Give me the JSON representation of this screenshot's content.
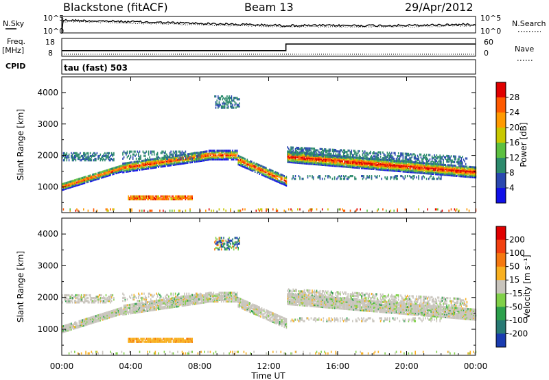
{
  "header": {
    "station": "Blackstone (fitACF)",
    "beam": "Beam 13",
    "date": "29/Apr/2012",
    "left_labels": {
      "nsky": "N.Sky",
      "freq": "Freq.",
      "mhz": "[MHz]",
      "cpid": "CPID"
    },
    "right_labels": {
      "nsearch": "N.Search",
      "nave": "Nave"
    },
    "cpid_value": "tau (fast) 503"
  },
  "chart_data": [
    {
      "type": "line",
      "name": "noise",
      "left_ticks": [
        "10^5",
        "10^0"
      ],
      "right_ticks": [
        "10^5",
        "10^0"
      ],
      "x_range_hours": [
        0,
        24
      ],
      "nsky_level_fraction_start": 0.78,
      "nsky_level_fraction_end": 0.45
    },
    {
      "type": "line",
      "name": "frequency-nave",
      "left_ticks": [
        "18",
        "8"
      ],
      "right_ticks": [
        "60",
        "0"
      ],
      "freq_mhz_segments": [
        {
          "from": "00:00",
          "to": "13:00",
          "value": 11
        },
        {
          "from": "13:00",
          "to": "24:00",
          "value": 15
        }
      ],
      "freq_ylim": [
        8,
        18
      ]
    },
    {
      "type": "heatmap",
      "name": "power",
      "ylabel": "Slant Range [km]",
      "yticks": [
        1000,
        2000,
        3000,
        4000
      ],
      "ylim": [
        180,
        4500
      ],
      "colorbar": {
        "label": "Power [dB]",
        "ticks": [
          "28",
          "24",
          "20",
          "16",
          "12",
          "8",
          "4"
        ],
        "colors": [
          "#1010e8",
          "#2a48b0",
          "#2c8a6c",
          "#5cc040",
          "#c8c800",
          "#ff9a00",
          "#ff5a00",
          "#e00000"
        ]
      }
    },
    {
      "type": "heatmap",
      "name": "velocity",
      "ylabel": "Slant Range [km]",
      "yticks": [
        1000,
        2000,
        3000,
        4000
      ],
      "ylim": [
        180,
        4500
      ],
      "colorbar": {
        "label": "Velocity [m s⁻¹]",
        "ticks": [
          "200",
          "100",
          "50",
          "15",
          "-15",
          "-50",
          "-100",
          "-200"
        ],
        "colors": [
          "#1a3cb0",
          "#287a74",
          "#2ca04c",
          "#80d048",
          "#c8c4bc",
          "#f8b020",
          "#f57810",
          "#f24010",
          "#e00000"
        ]
      }
    }
  ],
  "xaxis": {
    "label": "Time UT",
    "ticks": [
      "00:00",
      "04:00",
      "08:00",
      "12:00",
      "16:00",
      "20:00",
      "00:00"
    ]
  }
}
